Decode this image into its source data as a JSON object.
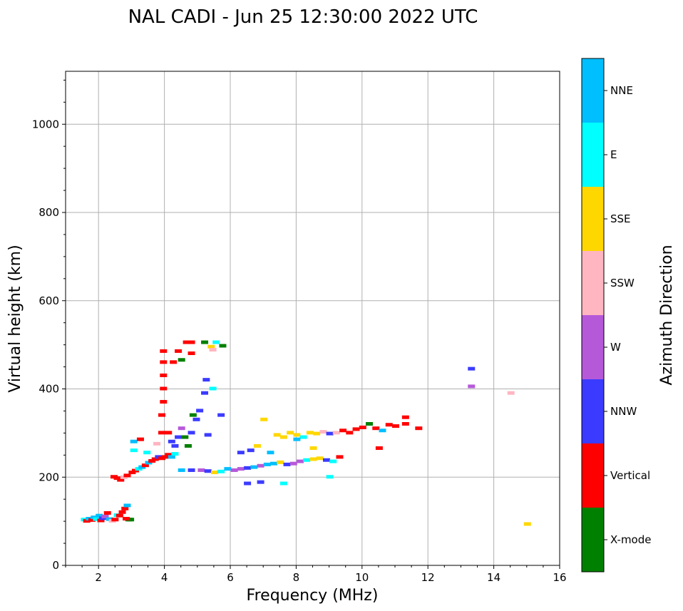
{
  "chart_data": {
    "type": "scatter",
    "title": "NAL CADI - Jun 25 12:30:00 2022 UTC",
    "xlabel": "Frequency (MHz)",
    "ylabel": "Virtual height (km)",
    "xlim": [
      1,
      16
    ],
    "ylim": [
      0,
      1120
    ],
    "xticks": [
      2,
      4,
      6,
      8,
      10,
      12,
      14,
      16
    ],
    "yticks": [
      0,
      200,
      400,
      600,
      800,
      1000
    ],
    "grid": true,
    "colorbar": {
      "label": "Azimuth Direction",
      "categories": [
        {
          "name": "X-mode",
          "color": "#008000"
        },
        {
          "name": "Vertical",
          "color": "#ff0000"
        },
        {
          "name": "NNW",
          "color": "#3b3bff"
        },
        {
          "name": "W",
          "color": "#b659d9"
        },
        {
          "name": "SSW",
          "color": "#ffb6c1"
        },
        {
          "name": "SSE",
          "color": "#ffd700"
        },
        {
          "name": "E",
          "color": "#00ffff"
        },
        {
          "name": "NNE",
          "color": "#00bfff"
        }
      ]
    },
    "points": [
      {
        "f": 1.55,
        "h": 103,
        "c": "E"
      },
      {
        "f": 1.62,
        "h": 100,
        "c": "Vertical"
      },
      {
        "f": 1.7,
        "h": 105,
        "c": "NNE"
      },
      {
        "f": 1.78,
        "h": 102,
        "c": "Vertical"
      },
      {
        "f": 1.85,
        "h": 108,
        "c": "NNE"
      },
      {
        "f": 1.92,
        "h": 104,
        "c": "E"
      },
      {
        "f": 2.0,
        "h": 112,
        "c": "NNE"
      },
      {
        "f": 2.05,
        "h": 101,
        "c": "Vertical"
      },
      {
        "f": 2.1,
        "h": 106,
        "c": "NNW"
      },
      {
        "f": 2.18,
        "h": 110,
        "c": "W"
      },
      {
        "f": 2.25,
        "h": 118,
        "c": "Vertical"
      },
      {
        "f": 2.32,
        "h": 104,
        "c": "NNE"
      },
      {
        "f": 2.4,
        "h": 100,
        "c": "SSW"
      },
      {
        "f": 2.48,
        "h": 103,
        "c": "Vertical"
      },
      {
        "f": 2.55,
        "h": 113,
        "c": "E"
      },
      {
        "f": 2.62,
        "h": 112,
        "c": "Vertical"
      },
      {
        "f": 2.7,
        "h": 120,
        "c": "Vertical"
      },
      {
        "f": 2.78,
        "h": 128,
        "c": "Vertical"
      },
      {
        "f": 2.85,
        "h": 135,
        "c": "NNE"
      },
      {
        "f": 2.9,
        "h": 103,
        "c": "X-mode"
      },
      {
        "f": 2.95,
        "h": 103,
        "c": "X-mode"
      },
      {
        "f": 2.82,
        "h": 105,
        "c": "Vertical"
      },
      {
        "f": 2.45,
        "h": 200,
        "c": "Vertical"
      },
      {
        "f": 2.55,
        "h": 197,
        "c": "Vertical"
      },
      {
        "f": 2.65,
        "h": 193,
        "c": "Vertical"
      },
      {
        "f": 2.75,
        "h": 199,
        "c": "SSW"
      },
      {
        "f": 2.85,
        "h": 203,
        "c": "Vertical"
      },
      {
        "f": 3.0,
        "h": 210,
        "c": "Vertical"
      },
      {
        "f": 3.1,
        "h": 214,
        "c": "Vertical"
      },
      {
        "f": 3.2,
        "h": 218,
        "c": "E"
      },
      {
        "f": 3.3,
        "h": 222,
        "c": "NNE"
      },
      {
        "f": 3.4,
        "h": 226,
        "c": "Vertical"
      },
      {
        "f": 3.5,
        "h": 232,
        "c": "NNE"
      },
      {
        "f": 3.6,
        "h": 236,
        "c": "Vertical"
      },
      {
        "f": 3.7,
        "h": 240,
        "c": "Vertical"
      },
      {
        "f": 3.8,
        "h": 245,
        "c": "NNW"
      },
      {
        "f": 3.9,
        "h": 242,
        "c": "Vertical"
      },
      {
        "f": 4.0,
        "h": 245,
        "c": "Vertical"
      },
      {
        "f": 4.1,
        "h": 250,
        "c": "Vertical"
      },
      {
        "f": 4.2,
        "h": 245,
        "c": "NNE"
      },
      {
        "f": 4.3,
        "h": 252,
        "c": "E"
      },
      {
        "f": 3.05,
        "h": 260,
        "c": "E"
      },
      {
        "f": 3.05,
        "h": 280,
        "c": "NNE"
      },
      {
        "f": 3.25,
        "h": 285,
        "c": "Vertical"
      },
      {
        "f": 3.45,
        "h": 255,
        "c": "E"
      },
      {
        "f": 3.75,
        "h": 275,
        "c": "SSW"
      },
      {
        "f": 3.9,
        "h": 300,
        "c": "Vertical"
      },
      {
        "f": 3.9,
        "h": 340,
        "c": "Vertical"
      },
      {
        "f": 3.95,
        "h": 370,
        "c": "Vertical"
      },
      {
        "f": 3.95,
        "h": 400,
        "c": "Vertical"
      },
      {
        "f": 3.95,
        "h": 430,
        "c": "Vertical"
      },
      {
        "f": 3.95,
        "h": 460,
        "c": "Vertical"
      },
      {
        "f": 3.95,
        "h": 485,
        "c": "Vertical"
      },
      {
        "f": 4.1,
        "h": 300,
        "c": "Vertical"
      },
      {
        "f": 4.2,
        "h": 280,
        "c": "NNW"
      },
      {
        "f": 4.3,
        "h": 270,
        "c": "NNW"
      },
      {
        "f": 4.4,
        "h": 290,
        "c": "NNW"
      },
      {
        "f": 4.5,
        "h": 310,
        "c": "W"
      },
      {
        "f": 4.6,
        "h": 290,
        "c": "X-mode"
      },
      {
        "f": 4.7,
        "h": 270,
        "c": "X-mode"
      },
      {
        "f": 4.8,
        "h": 300,
        "c": "NNW"
      },
      {
        "f": 4.85,
        "h": 340,
        "c": "X-mode"
      },
      {
        "f": 4.95,
        "h": 330,
        "c": "NNW"
      },
      {
        "f": 5.05,
        "h": 350,
        "c": "NNW"
      },
      {
        "f": 5.2,
        "h": 390,
        "c": "NNW"
      },
      {
        "f": 5.25,
        "h": 420,
        "c": "NNW"
      },
      {
        "f": 5.3,
        "h": 295,
        "c": "NNW"
      },
      {
        "f": 5.45,
        "h": 400,
        "c": "E"
      },
      {
        "f": 5.7,
        "h": 340,
        "c": "NNW"
      },
      {
        "f": 4.25,
        "h": 460,
        "c": "Vertical"
      },
      {
        "f": 4.4,
        "h": 485,
        "c": "Vertical"
      },
      {
        "f": 4.5,
        "h": 465,
        "c": "X-mode"
      },
      {
        "f": 4.65,
        "h": 505,
        "c": "Vertical"
      },
      {
        "f": 4.8,
        "h": 480,
        "c": "Vertical"
      },
      {
        "f": 4.8,
        "h": 505,
        "c": "Vertical"
      },
      {
        "f": 5.2,
        "h": 505,
        "c": "X-mode"
      },
      {
        "f": 5.4,
        "h": 495,
        "c": "SSE"
      },
      {
        "f": 5.45,
        "h": 488,
        "c": "SSW"
      },
      {
        "f": 5.55,
        "h": 505,
        "c": "E"
      },
      {
        "f": 5.75,
        "h": 497,
        "c": "X-mode"
      },
      {
        "f": 4.5,
        "h": 215,
        "c": "NNE"
      },
      {
        "f": 4.8,
        "h": 215,
        "c": "NNW"
      },
      {
        "f": 5.1,
        "h": 215,
        "c": "W"
      },
      {
        "f": 5.3,
        "h": 213,
        "c": "NNW"
      },
      {
        "f": 5.5,
        "h": 210,
        "c": "SSE"
      },
      {
        "f": 5.7,
        "h": 212,
        "c": "E"
      },
      {
        "f": 5.9,
        "h": 218,
        "c": "NNE"
      },
      {
        "f": 6.1,
        "h": 215,
        "c": "W"
      },
      {
        "f": 6.3,
        "h": 218,
        "c": "W"
      },
      {
        "f": 6.5,
        "h": 220,
        "c": "NNW"
      },
      {
        "f": 6.7,
        "h": 222,
        "c": "NNE"
      },
      {
        "f": 6.9,
        "h": 225,
        "c": "W"
      },
      {
        "f": 7.1,
        "h": 228,
        "c": "NNE"
      },
      {
        "f": 7.3,
        "h": 230,
        "c": "NNE"
      },
      {
        "f": 7.5,
        "h": 233,
        "c": "SSE"
      },
      {
        "f": 7.7,
        "h": 228,
        "c": "NNW"
      },
      {
        "f": 7.9,
        "h": 230,
        "c": "W"
      },
      {
        "f": 8.1,
        "h": 235,
        "c": "W"
      },
      {
        "f": 8.3,
        "h": 238,
        "c": "E"
      },
      {
        "f": 8.5,
        "h": 240,
        "c": "SSE"
      },
      {
        "f": 8.7,
        "h": 242,
        "c": "SSE"
      },
      {
        "f": 8.9,
        "h": 238,
        "c": "NNW"
      },
      {
        "f": 9.1,
        "h": 235,
        "c": "E"
      },
      {
        "f": 9.3,
        "h": 245,
        "c": "Vertical"
      },
      {
        "f": 6.5,
        "h": 185,
        "c": "NNW"
      },
      {
        "f": 6.9,
        "h": 188,
        "c": "NNW"
      },
      {
        "f": 7.6,
        "h": 185,
        "c": "E"
      },
      {
        "f": 9.0,
        "h": 200,
        "c": "E"
      },
      {
        "f": 6.3,
        "h": 255,
        "c": "NNW"
      },
      {
        "f": 6.6,
        "h": 260,
        "c": "NNW"
      },
      {
        "f": 6.8,
        "h": 270,
        "c": "SSE"
      },
      {
        "f": 7.2,
        "h": 255,
        "c": "NNE"
      },
      {
        "f": 7.0,
        "h": 330,
        "c": "SSE"
      },
      {
        "f": 7.4,
        "h": 295,
        "c": "SSE"
      },
      {
        "f": 7.6,
        "h": 290,
        "c": "SSE"
      },
      {
        "f": 7.8,
        "h": 300,
        "c": "SSE"
      },
      {
        "f": 8.0,
        "h": 295,
        "c": "SSE"
      },
      {
        "f": 8.2,
        "h": 290,
        "c": "E"
      },
      {
        "f": 8.4,
        "h": 300,
        "c": "SSE"
      },
      {
        "f": 8.6,
        "h": 298,
        "c": "SSE"
      },
      {
        "f": 8.8,
        "h": 302,
        "c": "SSW"
      },
      {
        "f": 9.0,
        "h": 298,
        "c": "NNW"
      },
      {
        "f": 9.2,
        "h": 300,
        "c": "SSW"
      },
      {
        "f": 9.4,
        "h": 305,
        "c": "Vertical"
      },
      {
        "f": 9.6,
        "h": 300,
        "c": "Vertical"
      },
      {
        "f": 9.8,
        "h": 308,
        "c": "Vertical"
      },
      {
        "f": 10.0,
        "h": 312,
        "c": "Vertical"
      },
      {
        "f": 10.2,
        "h": 320,
        "c": "X-mode"
      },
      {
        "f": 10.4,
        "h": 310,
        "c": "Vertical"
      },
      {
        "f": 10.6,
        "h": 305,
        "c": "NNE"
      },
      {
        "f": 10.8,
        "h": 318,
        "c": "Vertical"
      },
      {
        "f": 11.0,
        "h": 315,
        "c": "Vertical"
      },
      {
        "f": 11.3,
        "h": 320,
        "c": "Vertical"
      },
      {
        "f": 11.3,
        "h": 335,
        "c": "Vertical"
      },
      {
        "f": 11.7,
        "h": 310,
        "c": "Vertical"
      },
      {
        "f": 10.5,
        "h": 265,
        "c": "Vertical"
      },
      {
        "f": 8.5,
        "h": 265,
        "c": "SSE"
      },
      {
        "f": 8.0,
        "h": 285,
        "c": "NNE"
      },
      {
        "f": 13.3,
        "h": 445,
        "c": "NNW"
      },
      {
        "f": 13.3,
        "h": 405,
        "c": "W"
      },
      {
        "f": 14.5,
        "h": 390,
        "c": "SSW"
      },
      {
        "f": 15.0,
        "h": 93,
        "c": "SSE"
      }
    ]
  }
}
